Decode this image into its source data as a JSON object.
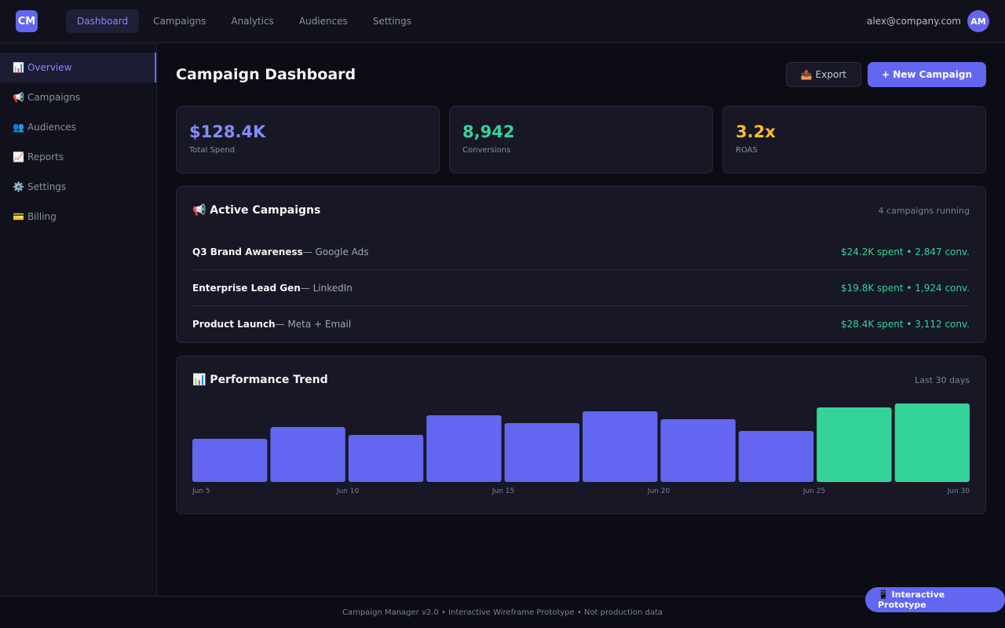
{
  "app": {
    "logo_text": "CM"
  },
  "top_nav": {
    "tabs": [
      {
        "label": "Dashboard",
        "active": true
      },
      {
        "label": "Campaigns"
      },
      {
        "label": "Analytics"
      },
      {
        "label": "Audiences"
      },
      {
        "label": "Settings"
      }
    ],
    "user_email": "alex@company.com",
    "avatar_initials": "AM"
  },
  "sidebar": {
    "items": [
      {
        "icon": "📊",
        "icon_name": "bar-chart-icon",
        "label": "Overview",
        "active": true
      },
      {
        "icon": "📢",
        "icon_name": "megaphone-icon",
        "label": "Campaigns"
      },
      {
        "icon": "👥",
        "icon_name": "people-icon",
        "label": "Audiences"
      },
      {
        "icon": "📈",
        "icon_name": "trend-chart-icon",
        "label": "Reports"
      },
      {
        "icon": "⚙️",
        "icon_name": "gear-icon",
        "label": "Settings"
      },
      {
        "icon": "💳",
        "icon_name": "credit-card-icon",
        "label": "Billing"
      }
    ]
  },
  "header": {
    "title": "Campaign Dashboard",
    "export_label": "📤 Export",
    "new_campaign_label": "+ New Campaign"
  },
  "stats": [
    {
      "value": "$128.4K",
      "label": "Total Spend",
      "color": "#818cf8"
    },
    {
      "value": "8,942",
      "label": "Conversions",
      "color": "#34d399"
    },
    {
      "value": "3.2x",
      "label": "ROAS",
      "color": "#fbbf24"
    }
  ],
  "active_campaigns": {
    "title": "📢 Active Campaigns",
    "meta": "4 campaigns running",
    "rows": [
      {
        "name": "Q3 Brand Awareness",
        "channel": " — Google Ads",
        "stats": "$24.2K spent • 2,847 conv."
      },
      {
        "name": "Enterprise Lead Gen",
        "channel": " — LinkedIn",
        "stats": "$19.8K spent • 1,924 conv."
      },
      {
        "name": "Product Launch",
        "channel": " — Meta + Email",
        "stats": "$28.4K spent • 3,112 conv."
      }
    ]
  },
  "performance": {
    "title": "📊 Performance Trend",
    "meta": "Last 30 days"
  },
  "chart_data": {
    "type": "bar",
    "values": [
      55,
      70,
      60,
      85,
      75,
      90,
      80,
      65,
      95,
      100
    ],
    "highlight_from_index": 8,
    "colors": {
      "base": "#6366f1",
      "highlight": "#34d399"
    },
    "tick_labels": [
      "Jun 5",
      "Jun 10",
      "Jun 15",
      "Jun 20",
      "Jun 25",
      "Jun 30"
    ],
    "ylim": [
      0,
      100
    ],
    "grid": false,
    "legend": "none"
  },
  "footer": {
    "text": "Campaign Manager v2.0 • Interactive Wireframe Prototype • Not production data",
    "prototype_label": "📱 Interactive Prototype"
  }
}
